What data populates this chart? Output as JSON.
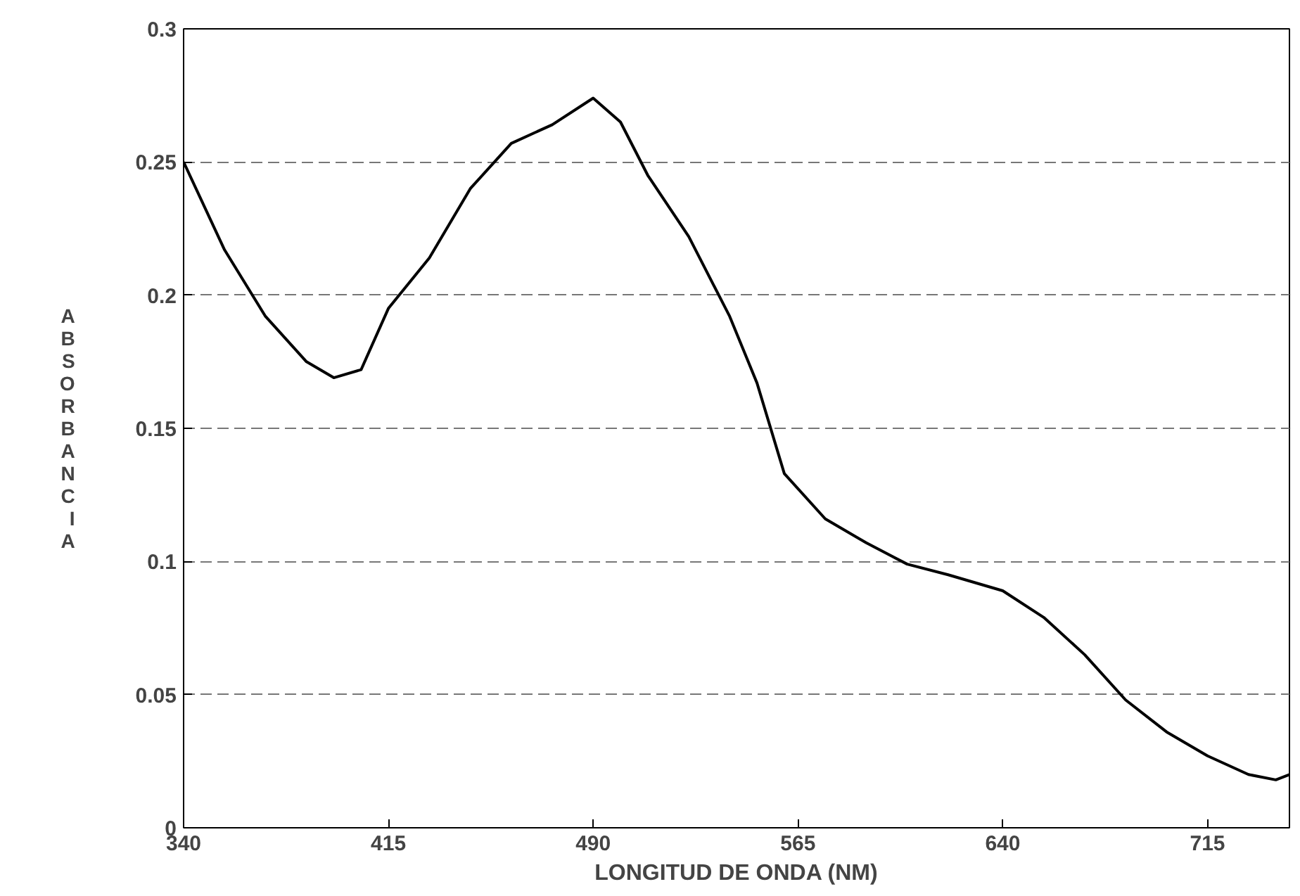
{
  "chart_data": {
    "type": "line",
    "xlabel": "LONGITUD DE ONDA (NM)",
    "ylabel": "ABSORBANCIA",
    "x": [
      340,
      355,
      370,
      385,
      395,
      405,
      415,
      430,
      445,
      460,
      475,
      490,
      500,
      510,
      525,
      540,
      550,
      560,
      575,
      590,
      605,
      620,
      640,
      655,
      670,
      685,
      700,
      715,
      730,
      740,
      745
    ],
    "series": [
      {
        "color": "#000000",
        "values": [
          0.25,
          0.217,
          0.192,
          0.175,
          0.169,
          0.172,
          0.195,
          0.214,
          0.24,
          0.257,
          0.264,
          0.274,
          0.265,
          0.245,
          0.222,
          0.192,
          0.167,
          0.133,
          0.116,
          0.107,
          0.099,
          0.095,
          0.089,
          0.079,
          0.065,
          0.048,
          0.036,
          0.027,
          0.02,
          0.018,
          0.02
        ]
      }
    ],
    "xlim": [
      340,
      745
    ],
    "xticks": [
      340,
      415,
      490,
      565,
      640,
      715
    ],
    "ylim": [
      0,
      0.3
    ],
    "yticks": [
      {
        "value": 0,
        "label": "0"
      },
      {
        "value": 0.05,
        "label": "0.05"
      },
      {
        "value": 0.1,
        "label": "0.1"
      },
      {
        "value": 0.15,
        "label": "0.15"
      },
      {
        "value": 0.2,
        "label": "0.2"
      },
      {
        "value": 0.25,
        "label": "0.25"
      },
      {
        "value": 0.3,
        "label": "0.3"
      }
    ],
    "grid": "y",
    "marker": "none",
    "line_style": "solid"
  }
}
